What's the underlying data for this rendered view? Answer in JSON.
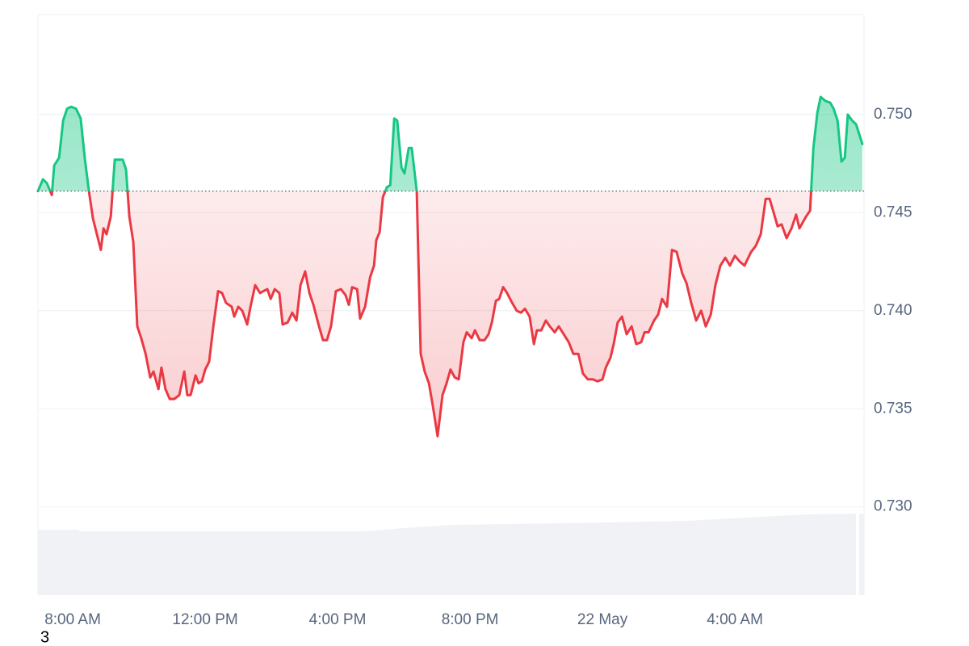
{
  "chart_data": {
    "type": "line",
    "baseline": 0.7461,
    "up_color": "#16c784",
    "down_color": "#ea3943",
    "grid": true,
    "ylim": [
      0.7255,
      0.7551
    ],
    "yticks": [
      {
        "value": 0.73,
        "label": "0.730"
      },
      0.735,
      {
        "value": 0.74,
        "label": "0.740"
      },
      0.745,
      {
        "value": 0.75,
        "label": "0.750"
      }
    ],
    "xlim": [
      6.95,
      31.9
    ],
    "xticks": [
      {
        "value": 8,
        "label": "8:00 AM"
      },
      {
        "value": 12,
        "label": "12:00 PM"
      },
      {
        "value": 16,
        "label": "4:00 PM"
      },
      {
        "value": 20,
        "label": "8:00 PM"
      },
      {
        "value": 24,
        "label": "22 May"
      },
      {
        "value": 28,
        "label": "4:00 AM"
      }
    ],
    "annotation": "3",
    "x": [
      6.95,
      7.1,
      7.22,
      7.37,
      7.44,
      7.59,
      7.71,
      7.83,
      7.95,
      8.1,
      8.24,
      8.37,
      8.49,
      8.61,
      8.73,
      8.85,
      8.93,
      9.02,
      9.15,
      9.27,
      9.37,
      9.51,
      9.61,
      9.71,
      9.83,
      9.95,
      10.07,
      10.2,
      10.34,
      10.44,
      10.59,
      10.68,
      10.8,
      10.93,
      11.07,
      11.22,
      11.37,
      11.46,
      11.56,
      11.71,
      11.8,
      11.9,
      12.0,
      12.12,
      12.24,
      12.39,
      12.51,
      12.63,
      12.8,
      12.88,
      13.0,
      13.12,
      13.27,
      13.37,
      13.51,
      13.66,
      13.76,
      13.88,
      13.98,
      14.1,
      14.24,
      14.34,
      14.49,
      14.63,
      14.76,
      14.88,
      15.02,
      15.15,
      15.27,
      15.44,
      15.56,
      15.68,
      15.8,
      15.95,
      16.1,
      16.24,
      16.34,
      16.44,
      16.59,
      16.68,
      16.83,
      16.98,
      17.1,
      17.17,
      17.27,
      17.37,
      17.49,
      17.59,
      17.71,
      17.8,
      17.93,
      18.02,
      18.15,
      18.24,
      18.39,
      18.51,
      18.63,
      18.76,
      18.88,
      19.02,
      19.17,
      19.29,
      19.41,
      19.54,
      19.66,
      19.8,
      19.9,
      20.05,
      20.15,
      20.29,
      20.44,
      20.56,
      20.66,
      20.78,
      20.88,
      21.0,
      21.12,
      21.24,
      21.41,
      21.54,
      21.66,
      21.8,
      21.93,
      22.02,
      22.15,
      22.29,
      22.41,
      22.56,
      22.68,
      22.83,
      22.98,
      23.12,
      23.27,
      23.41,
      23.56,
      23.71,
      23.85,
      24.0,
      24.1,
      24.24,
      24.34,
      24.46,
      24.59,
      24.73,
      24.88,
      25.02,
      25.17,
      25.27,
      25.39,
      25.56,
      25.68,
      25.8,
      25.95,
      26.1,
      26.24,
      26.41,
      26.54,
      26.68,
      26.83,
      26.98,
      27.12,
      27.27,
      27.41,
      27.56,
      27.71,
      27.85,
      28.0,
      28.15,
      28.29,
      28.49,
      28.63,
      28.78,
      28.93,
      29.05,
      29.17,
      29.29,
      29.41,
      29.56,
      29.71,
      29.85,
      29.95,
      30.15,
      30.27,
      30.37,
      30.49,
      30.59,
      30.73,
      30.88,
      30.98,
      31.1,
      31.22,
      31.32,
      31.41,
      31.54,
      31.66,
      31.85
    ],
    "values": [
      0.7461,
      0.7467,
      0.7465,
      0.7459,
      0.7474,
      0.7478,
      0.7497,
      0.7503,
      0.7504,
      0.7503,
      0.7498,
      0.7477,
      0.7461,
      0.7447,
      0.7439,
      0.7431,
      0.7442,
      0.7439,
      0.7448,
      0.7477,
      0.7477,
      0.7477,
      0.7472,
      0.7448,
      0.7435,
      0.7392,
      0.7386,
      0.7378,
      0.7366,
      0.7369,
      0.736,
      0.7371,
      0.736,
      0.7355,
      0.7355,
      0.7357,
      0.7369,
      0.7357,
      0.7357,
      0.7367,
      0.7363,
      0.7364,
      0.737,
      0.7374,
      0.7391,
      0.741,
      0.7409,
      0.7404,
      0.7402,
      0.7397,
      0.7402,
      0.74,
      0.7393,
      0.7402,
      0.7413,
      0.7409,
      0.741,
      0.7411,
      0.7406,
      0.7411,
      0.7409,
      0.7393,
      0.7394,
      0.7399,
      0.7395,
      0.7413,
      0.742,
      0.7409,
      0.7403,
      0.7392,
      0.7385,
      0.7385,
      0.7392,
      0.741,
      0.7411,
      0.7408,
      0.7403,
      0.7412,
      0.7411,
      0.7396,
      0.7402,
      0.7417,
      0.7423,
      0.7436,
      0.744,
      0.7458,
      0.7463,
      0.7464,
      0.7498,
      0.7497,
      0.7473,
      0.747,
      0.7483,
      0.7483,
      0.7461,
      0.7378,
      0.7369,
      0.7363,
      0.7351,
      0.7336,
      0.7357,
      0.7363,
      0.737,
      0.7366,
      0.7365,
      0.7384,
      0.7389,
      0.7386,
      0.739,
      0.7385,
      0.7385,
      0.7388,
      0.7394,
      0.7405,
      0.7406,
      0.7412,
      0.7409,
      0.7405,
      0.74,
      0.7399,
      0.7401,
      0.7397,
      0.7383,
      0.739,
      0.739,
      0.7395,
      0.7392,
      0.7389,
      0.7392,
      0.7388,
      0.7384,
      0.7378,
      0.7378,
      0.7368,
      0.7365,
      0.7365,
      0.7364,
      0.7365,
      0.7371,
      0.7376,
      0.7383,
      0.7394,
      0.7397,
      0.7388,
      0.7392,
      0.7383,
      0.7384,
      0.7389,
      0.7389,
      0.7395,
      0.7398,
      0.7406,
      0.7402,
      0.7431,
      0.743,
      0.7419,
      0.7414,
      0.7404,
      0.7395,
      0.74,
      0.7392,
      0.7398,
      0.7413,
      0.7423,
      0.7427,
      0.7423,
      0.7428,
      0.7425,
      0.7423,
      0.743,
      0.7433,
      0.7439,
      0.7457,
      0.7457,
      0.745,
      0.7443,
      0.7444,
      0.7437,
      0.7442,
      0.7449,
      0.7442,
      0.7448,
      0.7451,
      0.7483,
      0.7501,
      0.7509,
      0.7507,
      0.7506,
      0.7503,
      0.7497,
      0.7476,
      0.7478,
      0.75,
      0.7497,
      0.7495,
      0.7485
    ]
  }
}
